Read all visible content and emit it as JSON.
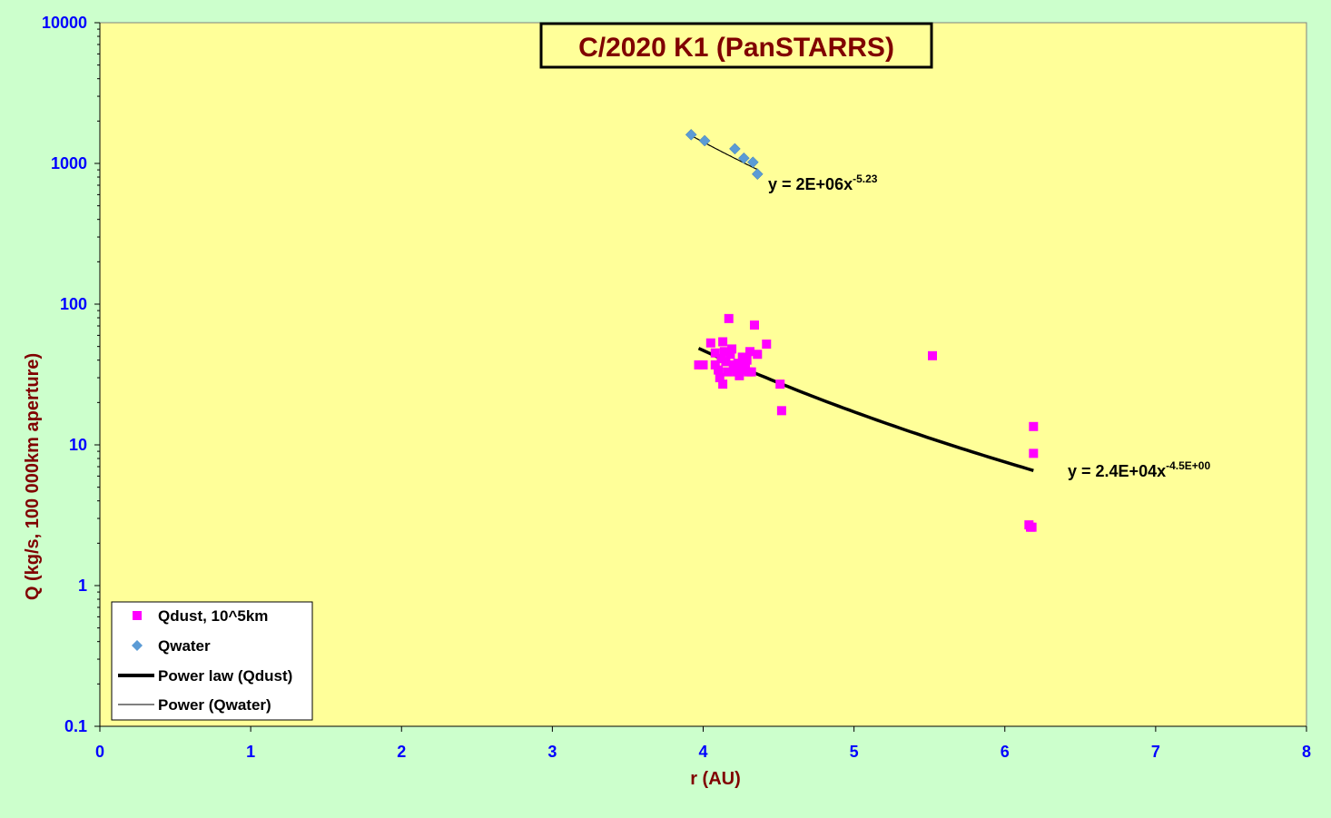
{
  "colors": {
    "outer_bg": "#ccffcc",
    "plot_bg": "#ffff99",
    "title_color": "#800000",
    "tick_label_color": "#0000ff",
    "axis_label_color": "#800000",
    "dust_marker": "#ff00ff",
    "water_marker": "#5b9bd5",
    "fit_line": "#000000"
  },
  "chart_data": {
    "type": "scatter",
    "title": "C/2020 K1 (PanSTARRS)",
    "xlabel": "r (AU)",
    "ylabel": "Q (kg/s, 100 000km aperture)",
    "xlim": [
      0,
      8
    ],
    "ylim": [
      0.1,
      10000
    ],
    "yscale": "log",
    "grid": false,
    "legend_position": "bottom-left",
    "x_ticks": [
      "0",
      "1",
      "2",
      "3",
      "4",
      "5",
      "6",
      "7",
      "8"
    ],
    "y_ticks": [
      "0.1",
      "1",
      "10",
      "100",
      "1000",
      "10000"
    ],
    "series": [
      {
        "name": "Qdust, 10^5km",
        "marker": "square",
        "points": [
          [
            3.97,
            37
          ],
          [
            4.0,
            37
          ],
          [
            4.05,
            53
          ],
          [
            4.08,
            45
          ],
          [
            4.08,
            37
          ],
          [
            4.1,
            34
          ],
          [
            4.11,
            30
          ],
          [
            4.12,
            41
          ],
          [
            4.13,
            54
          ],
          [
            4.13,
            27
          ],
          [
            4.14,
            46
          ],
          [
            4.15,
            39
          ],
          [
            4.16,
            33
          ],
          [
            4.17,
            79
          ],
          [
            4.18,
            44
          ],
          [
            4.19,
            48
          ],
          [
            4.2,
            37
          ],
          [
            4.21,
            35
          ],
          [
            4.22,
            33
          ],
          [
            4.23,
            38
          ],
          [
            4.24,
            31
          ],
          [
            4.25,
            34
          ],
          [
            4.26,
            42
          ],
          [
            4.27,
            37
          ],
          [
            4.28,
            35
          ],
          [
            4.29,
            40
          ],
          [
            4.3,
            33
          ],
          [
            4.31,
            46
          ],
          [
            4.32,
            33
          ],
          [
            4.34,
            71
          ],
          [
            4.36,
            44
          ],
          [
            4.42,
            52
          ],
          [
            4.51,
            27
          ],
          [
            4.52,
            17.5
          ],
          [
            5.52,
            43
          ],
          [
            6.16,
            2.7
          ],
          [
            6.17,
            2.6
          ],
          [
            6.18,
            2.6
          ],
          [
            6.19,
            13.5
          ],
          [
            6.19,
            8.7
          ]
        ]
      },
      {
        "name": "Qwater",
        "marker": "diamond",
        "points": [
          [
            3.92,
            1600
          ],
          [
            4.01,
            1450
          ],
          [
            4.21,
            1270
          ],
          [
            4.27,
            1090
          ],
          [
            4.33,
            1020
          ],
          [
            4.36,
            840
          ]
        ]
      }
    ],
    "fits": [
      {
        "name": "Power law (Qdust)",
        "a": 24000,
        "b": -4.5,
        "x_range": [
          3.97,
          6.19
        ],
        "equation_base": "y = 2.4E+04x",
        "equation_exp": "-4.5E+00"
      },
      {
        "name": "Power (Qwater)",
        "a": 2000000,
        "b": -5.23,
        "x_range": [
          3.92,
          4.36
        ],
        "equation_base": "y = 2E+06x",
        "equation_exp": "-5.23"
      }
    ],
    "legend": [
      "Qdust, 10^5km",
      "Qwater",
      "Power law (Qdust)",
      "Power (Qwater)"
    ]
  }
}
